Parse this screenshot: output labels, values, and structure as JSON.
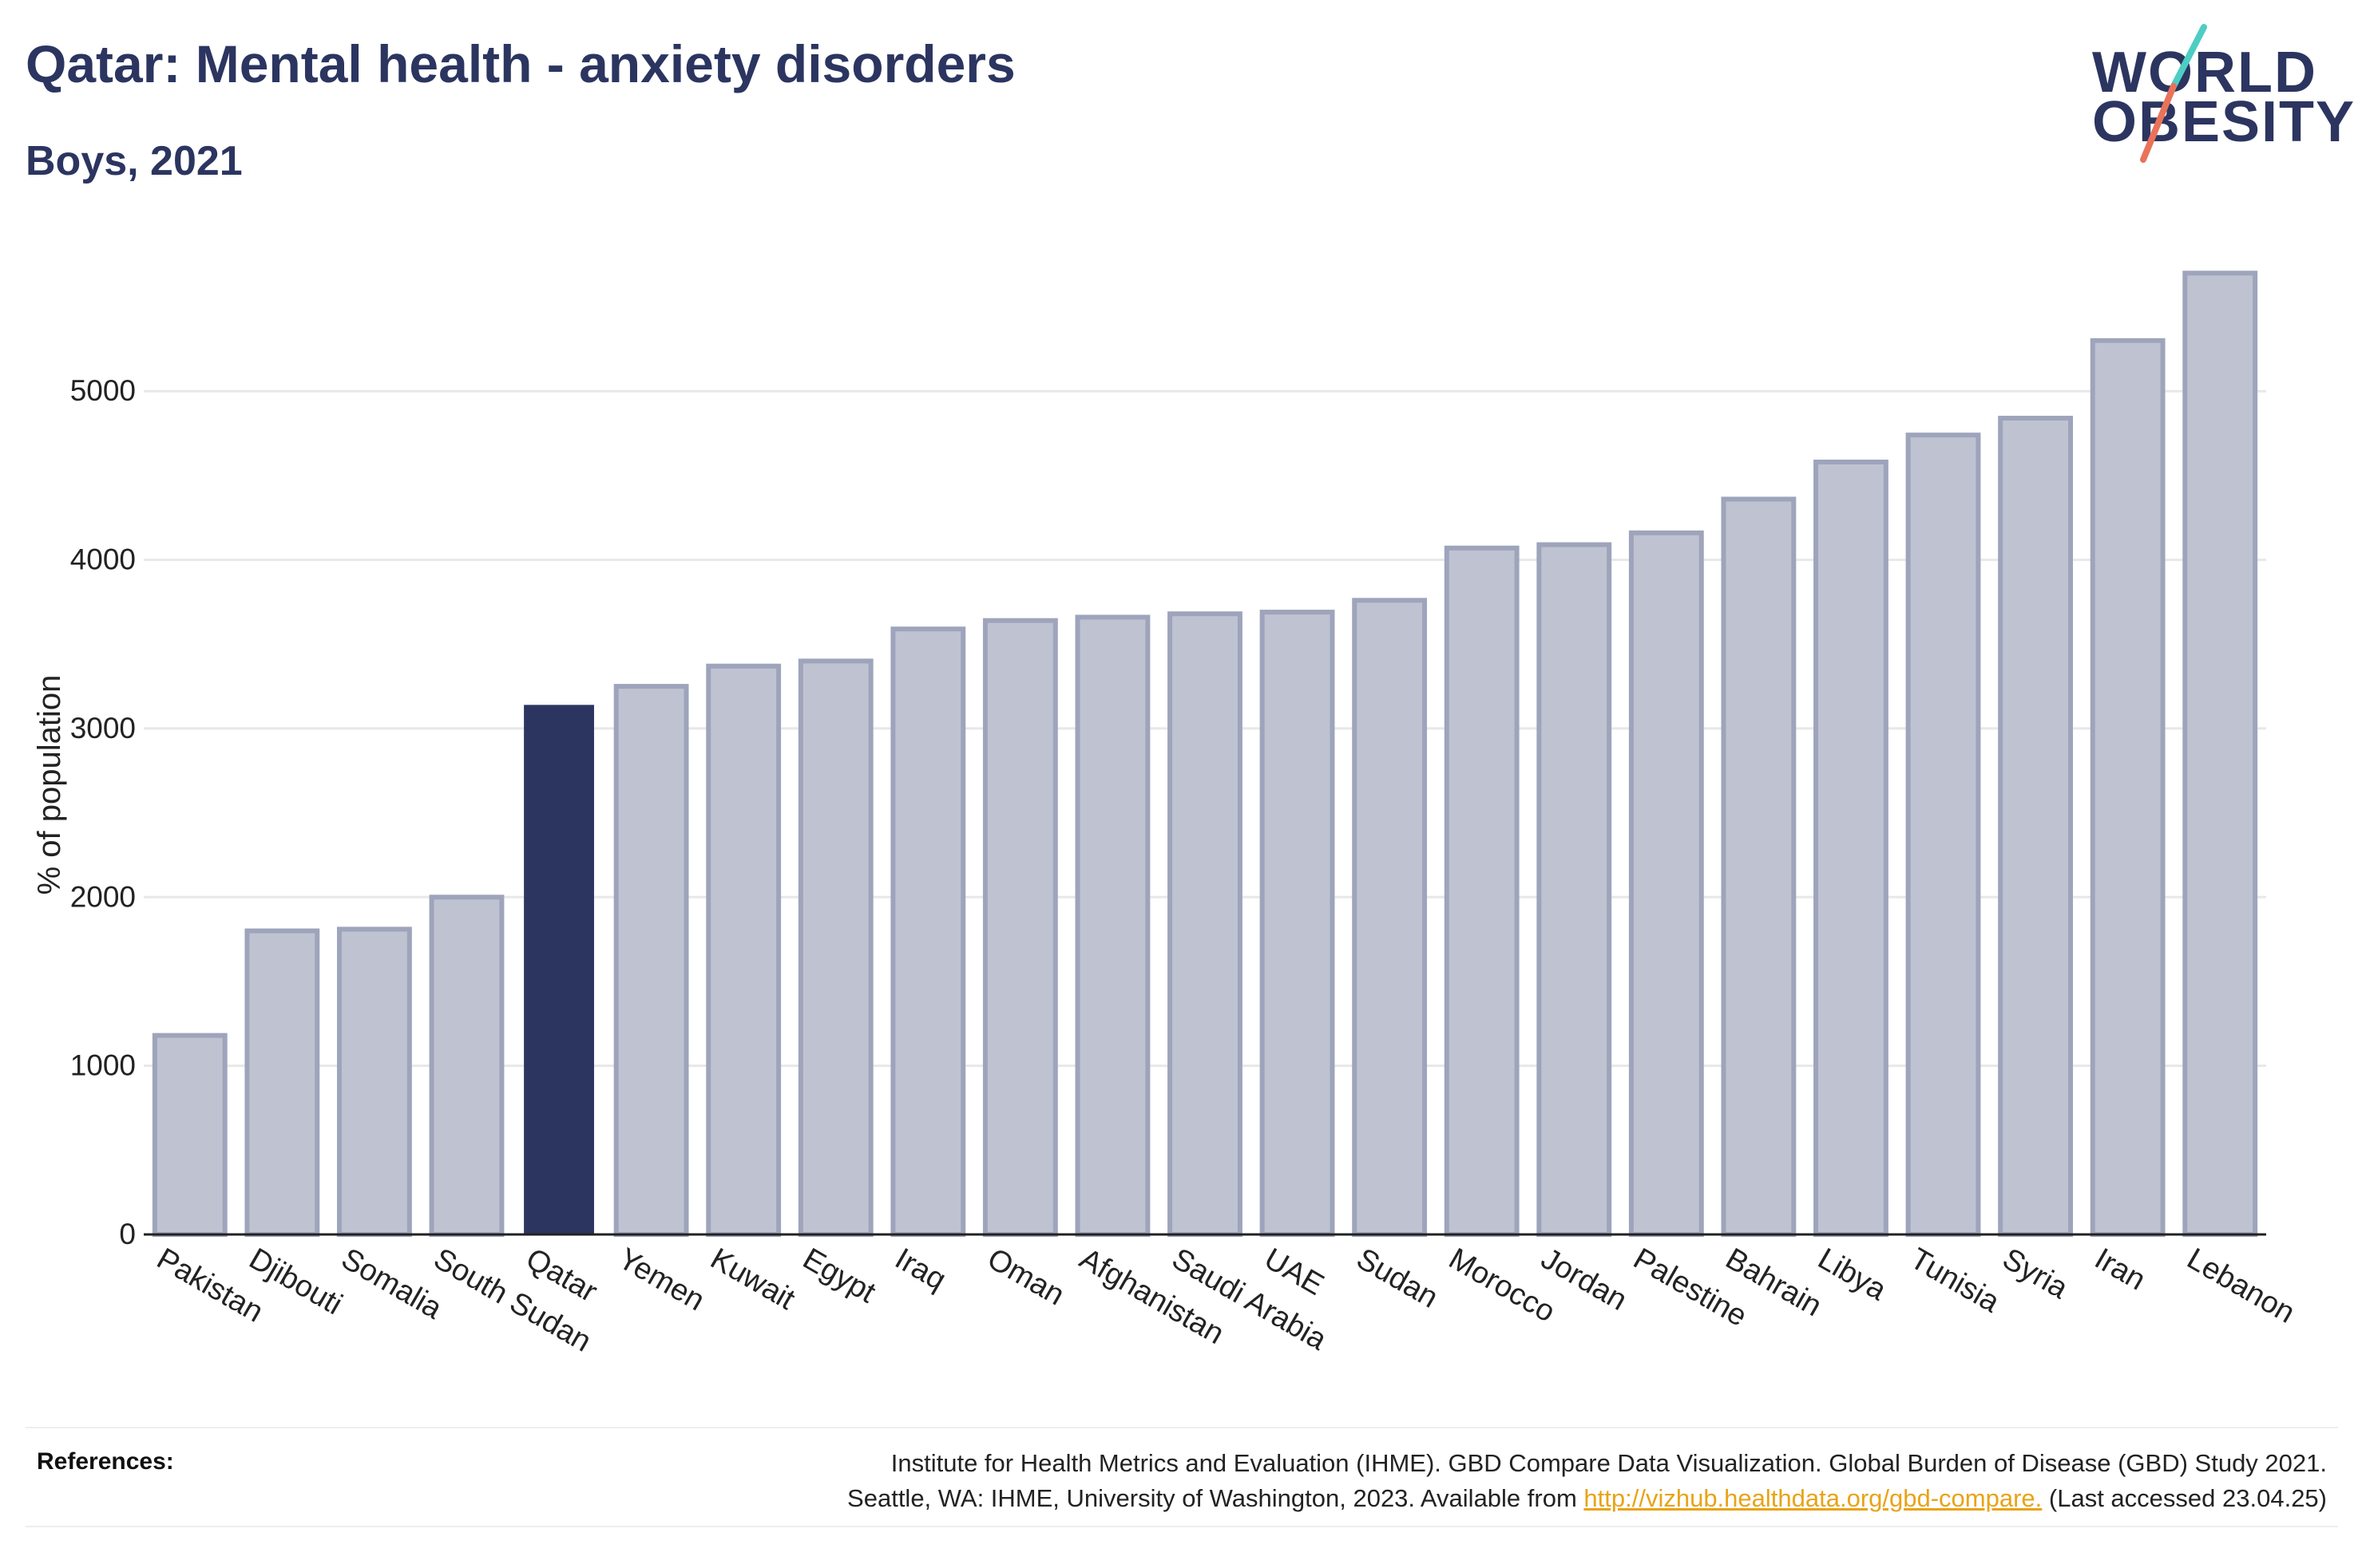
{
  "header": {
    "title": "Qatar: Mental health - anxiety disorders",
    "subtitle": "Boys, 2021"
  },
  "logo": {
    "line1": "WORLD",
    "line2": "OBESITY",
    "slash_colors": [
      "#4ecdc4",
      "#e8735a"
    ]
  },
  "colors": {
    "highlight": "#2b3560",
    "bar_fill": "#bfc3d1",
    "bar_stroke": "#9ea4bb",
    "grid": "#e8e8e8",
    "axis": "#222222",
    "link": "#e8a317"
  },
  "chart_data": {
    "type": "bar",
    "ylabel": "% of population",
    "xlabel": "",
    "ylim": [
      0,
      5900
    ],
    "yticks": [
      0,
      1000,
      2000,
      3000,
      4000,
      5000
    ],
    "grid": true,
    "highlight": "Qatar",
    "categories": [
      "Pakistan",
      "Djibouti",
      "Somalia",
      "South Sudan",
      "Qatar",
      "Yemen",
      "Kuwait",
      "Egypt",
      "Iraq",
      "Oman",
      "Afghanistan",
      "Saudi Arabia",
      "UAE",
      "Sudan",
      "Morocco",
      "Jordan",
      "Palestine",
      "Bahrain",
      "Libya",
      "Tunisia",
      "Syria",
      "Iran",
      "Lebanon"
    ],
    "values": [
      1180,
      1800,
      1810,
      2000,
      3140,
      3250,
      3370,
      3400,
      3590,
      3640,
      3660,
      3680,
      3690,
      3760,
      4070,
      4090,
      4160,
      4360,
      4580,
      4740,
      4840,
      5300,
      5700
    ]
  },
  "references": {
    "label": "References:",
    "line1": "Institute for Health Metrics and Evaluation (IHME). GBD Compare Data Visualization. Global Burden of Disease (GBD) Study 2021.",
    "line2_prefix": "Seattle, WA: IHME, University of Washington, 2023. Available from ",
    "link_text": "http://vizhub.healthdata.org/gbd-compare.",
    "line2_suffix": " (Last accessed 23.04.25)"
  }
}
